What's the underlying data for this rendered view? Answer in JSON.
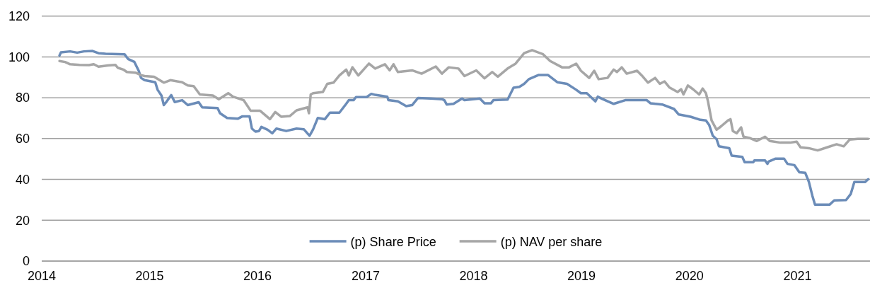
{
  "chart_data": {
    "type": "line",
    "xlim": [
      "2014-01-01",
      "2021-09-03"
    ],
    "ylim": [
      0,
      120
    ],
    "xticks": [
      {
        "value": "2014-01-01",
        "label": "2014"
      },
      {
        "value": "2015-01-01",
        "label": "2015"
      },
      {
        "value": "2016-01-01",
        "label": "2016"
      },
      {
        "value": "2017-01-01",
        "label": "2017"
      },
      {
        "value": "2018-01-01",
        "label": "2018"
      },
      {
        "value": "2019-01-01",
        "label": "2019"
      },
      {
        "value": "2020-01-01",
        "label": "2020"
      },
      {
        "value": "2021-01-01",
        "label": "2021"
      }
    ],
    "yticks": [
      0,
      20,
      40,
      60,
      80,
      100,
      120
    ],
    "grid": "y",
    "legend": "bottom",
    "series": [
      {
        "name": "(p) Share Price",
        "color": "#6b8cb8",
        "x": [
          "2014-03-02",
          "2014-03-07",
          "2014-04-07",
          "2014-05-01",
          "2014-05-24",
          "2014-06-22",
          "2014-07-12",
          "2014-08-05",
          "2014-10-08",
          "2014-10-20",
          "2014-11-10",
          "2014-11-25",
          "2014-12-03",
          "2014-12-15",
          "2015-01-20",
          "2015-01-28",
          "2015-02-10",
          "2015-02-18",
          "2015-02-28",
          "2015-03-15",
          "2015-03-27",
          "2015-04-21",
          "2015-05-10",
          "2015-06-16",
          "2015-06-28",
          "2015-08-19",
          "2015-08-27",
          "2015-09-20",
          "2015-10-26",
          "2015-11-11",
          "2015-12-05",
          "2015-12-13",
          "2015-12-25",
          "2016-01-06",
          "2016-01-14",
          "2016-02-04",
          "2016-02-20",
          "2016-03-05",
          "2016-04-07",
          "2016-05-12",
          "2016-06-06",
          "2016-06-25",
          "2016-07-07",
          "2016-07-23",
          "2016-08-16",
          "2016-09-02",
          "2016-10-04",
          "2016-10-27",
          "2016-11-05",
          "2016-11-21",
          "2016-11-29",
          "2017-01-04",
          "2017-01-20",
          "2017-02-02",
          "2017-03-15",
          "2017-03-19",
          "2017-04-20",
          "2017-05-18",
          "2017-06-07",
          "2017-06-27",
          "2017-08-10",
          "2017-09-16",
          "2017-09-24",
          "2017-10-02",
          "2017-10-25",
          "2017-11-23",
          "2017-12-01",
          "2018-01-22",
          "2018-02-07",
          "2018-03-01",
          "2018-03-09",
          "2018-04-26",
          "2018-05-16",
          "2018-06-05",
          "2018-06-21",
          "2018-07-07",
          "2018-08-08",
          "2018-09-10",
          "2018-10-11",
          "2018-11-13",
          "2018-12-14",
          "2018-12-30",
          "2019-01-19",
          "2019-02-17",
          "2019-02-25",
          "2019-03-14",
          "2019-04-20",
          "2019-05-29",
          "2019-08-10",
          "2019-08-22",
          "2019-10-01",
          "2019-11-10",
          "2019-11-26",
          "2020-01-05",
          "2020-02-07",
          "2020-02-26",
          "2020-03-08",
          "2020-03-20",
          "2020-04-02",
          "2020-04-10",
          "2020-05-15",
          "2020-05-23",
          "2020-06-28",
          "2020-07-06",
          "2020-08-04",
          "2020-08-08",
          "2020-09-13",
          "2020-09-21",
          "2020-09-25",
          "2020-10-19",
          "2020-11-16",
          "2020-11-28",
          "2020-12-21",
          "2021-01-07",
          "2021-01-27",
          "2021-02-08",
          "2021-02-20",
          "2021-03-01",
          "2021-04-19",
          "2021-05-05",
          "2021-06-14",
          "2021-06-30",
          "2021-07-12",
          "2021-08-17",
          "2021-08-28"
        ],
        "values": [
          100.7,
          102.2,
          102.7,
          102.1,
          102.7,
          102.9,
          101.8,
          101.5,
          101.3,
          99,
          97.6,
          93.2,
          89.7,
          88.6,
          87.6,
          83.9,
          81.1,
          76.4,
          78.2,
          81.3,
          77.9,
          78.8,
          76.4,
          77.8,
          75.3,
          74.9,
          72.4,
          70.1,
          69.7,
          70.9,
          70.9,
          64.9,
          63.4,
          63.7,
          65.7,
          64.3,
          62.6,
          64.9,
          63.7,
          64.9,
          64.5,
          61.4,
          64.5,
          70.1,
          69.5,
          72.7,
          72.7,
          77,
          78.8,
          78.8,
          80.3,
          80.3,
          81.9,
          81.4,
          80.5,
          78.8,
          78.2,
          75.9,
          76.4,
          79.9,
          79.6,
          79.3,
          78.8,
          76.7,
          77,
          79.6,
          78.8,
          79.6,
          77.3,
          77.3,
          78.8,
          79.1,
          84.9,
          85.3,
          86.8,
          89.1,
          91.1,
          91.1,
          87.6,
          86.8,
          83.9,
          82.2,
          82.2,
          78.2,
          80.5,
          79.3,
          77,
          78.8,
          78.8,
          77.3,
          76.7,
          74.5,
          71.8,
          70.7,
          69.2,
          68.9,
          66.6,
          61.4,
          59.7,
          56.2,
          55.3,
          51.6,
          51,
          48.4,
          48.4,
          49.3,
          49.3,
          47.6,
          48.7,
          50.2,
          50.2,
          47.6,
          47,
          43.5,
          43.2,
          38.9,
          32,
          27.6,
          27.6,
          29.7,
          29.9,
          32.9,
          38.7,
          38.7,
          40.1
        ]
      },
      {
        "name": "(p) NAV per share",
        "color": "#a6a6a6",
        "x": [
          "2014-03-02",
          "2014-03-21",
          "2014-04-07",
          "2014-05-09",
          "2014-06-10",
          "2014-06-26",
          "2014-07-12",
          "2014-08-13",
          "2014-09-07",
          "2014-09-15",
          "2014-10-04",
          "2014-10-16",
          "2014-11-14",
          "2014-12-03",
          "2014-12-15",
          "2015-01-16",
          "2015-02-18",
          "2015-03-12",
          "2015-04-21",
          "2015-05-10",
          "2015-05-30",
          "2015-06-20",
          "2015-08-03",
          "2015-08-23",
          "2015-09-24",
          "2015-10-10",
          "2015-11-15",
          "2015-12-09",
          "2016-01-10",
          "2016-02-12",
          "2016-03-01",
          "2016-03-21",
          "2016-04-19",
          "2016-05-12",
          "2016-06-18",
          "2016-06-23",
          "2016-06-29",
          "2016-07-07",
          "2016-08-09",
          "2016-08-24",
          "2016-09-14",
          "2016-10-04",
          "2016-10-27",
          "2016-11-05",
          "2016-11-17",
          "2016-12-07",
          "2017-01-12",
          "2017-02-02",
          "2017-03-07",
          "2017-03-23",
          "2017-04-05",
          "2017-04-20",
          "2017-06-07",
          "2017-07-09",
          "2017-08-26",
          "2017-09-16",
          "2017-10-09",
          "2017-11-11",
          "2017-12-01",
          "2018-01-10",
          "2018-02-07",
          "2018-03-05",
          "2018-03-24",
          "2018-04-26",
          "2018-05-23",
          "2018-06-21",
          "2018-07-18",
          "2018-08-24",
          "2018-09-17",
          "2018-10-27",
          "2018-11-20",
          "2018-12-14",
          "2018-12-30",
          "2019-01-27",
          "2019-02-13",
          "2019-02-28",
          "2019-03-30",
          "2019-04-20",
          "2019-05-01",
          "2019-05-17",
          "2019-06-03",
          "2019-07-08",
          "2019-07-24",
          "2019-08-14",
          "2019-09-07",
          "2019-09-23",
          "2019-10-09",
          "2019-10-25",
          "2019-11-22",
          "2019-12-04",
          "2019-12-12",
          "2019-12-27",
          "2020-01-13",
          "2020-02-03",
          "2020-02-15",
          "2020-02-26",
          "2020-03-04",
          "2020-03-16",
          "2020-04-02",
          "2020-04-18",
          "2020-05-11",
          "2020-05-19",
          "2020-05-27",
          "2020-06-09",
          "2020-06-24",
          "2020-07-02",
          "2020-07-22",
          "2020-08-16",
          "2020-09-13",
          "2020-09-29",
          "2020-11-04",
          "2020-12-06",
          "2020-12-29",
          "2021-01-11",
          "2021-02-08",
          "2021-03-10",
          "2021-04-11",
          "2021-05-13",
          "2021-06-06",
          "2021-06-26",
          "2021-07-24",
          "2021-08-28"
        ],
        "values": [
          98,
          97.5,
          96.4,
          96.1,
          96,
          96.4,
          95.2,
          95.8,
          96.1,
          94.7,
          93.8,
          92.6,
          92.3,
          91.1,
          90.6,
          90.3,
          87.4,
          88.6,
          87.6,
          86,
          85.7,
          81.6,
          81.1,
          79.3,
          82.2,
          80.5,
          78.8,
          73.6,
          73.6,
          69.5,
          73,
          70.7,
          71,
          73.8,
          75.3,
          72.4,
          81.6,
          82.2,
          82.8,
          86.8,
          87.4,
          90.9,
          93.8,
          90.9,
          94.9,
          90.9,
          96.7,
          94.3,
          96.4,
          93.4,
          96.4,
          92.6,
          93.4,
          91.8,
          95.3,
          91.8,
          94.9,
          94.3,
          90.6,
          93.4,
          89.5,
          92.6,
          90.3,
          94.3,
          96.7,
          101.8,
          103.3,
          101.3,
          98,
          94.9,
          94.9,
          96.7,
          93.2,
          89.7,
          93.2,
          89.1,
          89.7,
          93.8,
          92.6,
          94.9,
          91.8,
          93.2,
          90.9,
          87.4,
          89.7,
          86.8,
          88,
          85.1,
          82.8,
          84.2,
          81.6,
          86,
          84.2,
          81.6,
          84.5,
          82.2,
          78.2,
          68.9,
          64.3,
          66.1,
          68.9,
          69.5,
          63.7,
          62.6,
          65.5,
          60.9,
          60.3,
          58.8,
          60.9,
          58.8,
          58,
          58,
          58.5,
          55.7,
          55.3,
          54.2,
          55.7,
          57.2,
          56.2,
          59.5,
          59.9,
          59.9
        ]
      }
    ]
  }
}
